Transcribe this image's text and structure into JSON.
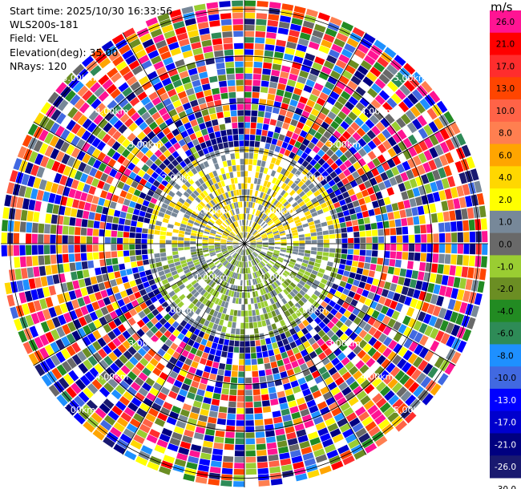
{
  "info": {
    "start_time": "Start time: 2025/10/30 16:33:56",
    "station": "WLS200s-181",
    "field": "Field: VEL",
    "elevation": "Elevation(deg): 35.00",
    "nrays": "NRays: 120"
  },
  "chart_data": {
    "type": "heatmap",
    "projection": "polar-ppi",
    "field": "VEL",
    "unit": "m/s",
    "n_rays": 120,
    "range_ring_labels": [
      "1.00km",
      "2.00km",
      "3.00km",
      "4.00km",
      "5.00km"
    ],
    "colorbar": {
      "unit": "m/s",
      "ticks": [
        "26.0",
        "21.0",
        "17.0",
        "13.0",
        "10.0",
        "8.0",
        "6.0",
        "4.0",
        "2.0",
        "1.0",
        "0.0",
        "-1.0",
        "-2.0",
        "-4.0",
        "-6.0",
        "-8.0",
        "-10.0",
        "-13.0",
        "-17.0",
        "-21.0",
        "-26.0",
        "-30.0"
      ],
      "bands": [
        {
          "label": "26.0",
          "color": "#ff1493"
        },
        {
          "label": "21.0",
          "color": "#ff0000"
        },
        {
          "label": "17.0",
          "color": "#ff2d2d"
        },
        {
          "label": "13.0",
          "color": "#ff4500"
        },
        {
          "label": "10.0",
          "color": "#ff6347"
        },
        {
          "label": "8.0",
          "color": "#ff7f50"
        },
        {
          "label": "6.0",
          "color": "#ffa500"
        },
        {
          "label": "4.0",
          "color": "#ffd700"
        },
        {
          "label": "2.0",
          "color": "#ffff00"
        },
        {
          "label": "1.0",
          "color": "#778899"
        },
        {
          "label": "0.0",
          "color": "#696969"
        },
        {
          "label": "-1.0",
          "color": "#9acd32"
        },
        {
          "label": "-2.0",
          "color": "#6b8e23"
        },
        {
          "label": "-4.0",
          "color": "#228b22"
        },
        {
          "label": "-6.0",
          "color": "#2e8b57"
        },
        {
          "label": "-8.0",
          "color": "#1e90ff"
        },
        {
          "label": "-10.0",
          "color": "#4169e1"
        },
        {
          "label": "-13.0",
          "color": "#0000ff"
        },
        {
          "label": "-17.0",
          "color": "#0000cd"
        },
        {
          "label": "-21.0",
          "color": "#000080"
        },
        {
          "label": "-26.0",
          "color": "#191970"
        }
      ]
    }
  }
}
